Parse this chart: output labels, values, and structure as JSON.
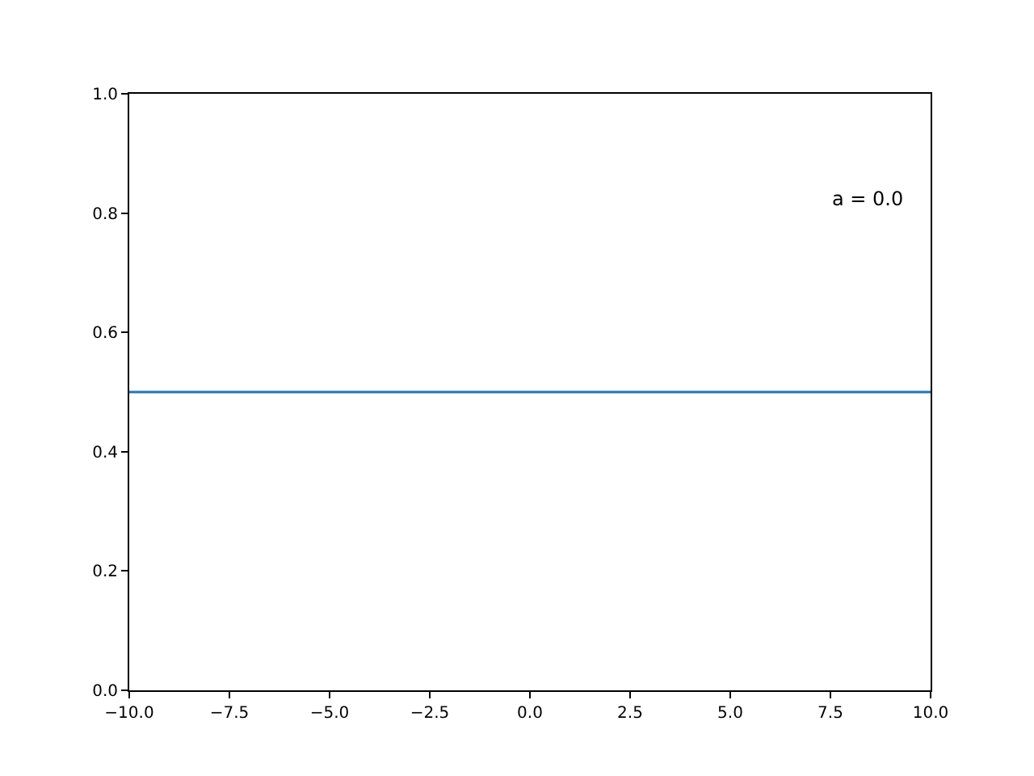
{
  "chart_data": {
    "type": "line",
    "x": [
      -10,
      10
    ],
    "series": [
      {
        "color": "#1f77b4",
        "values": [
          0.5,
          0.5
        ]
      }
    ],
    "annotations": [
      "a = 0.0"
    ],
    "xlim": [
      -10,
      10
    ],
    "xticks": [
      {
        "value": -10,
        "label": "−10.0"
      },
      {
        "value": -7.5,
        "label": "−7.5"
      },
      {
        "value": -5,
        "label": "−5.0"
      },
      {
        "value": -2.5,
        "label": "−2.5"
      },
      {
        "value": 0,
        "label": "0.0"
      },
      {
        "value": 2.5,
        "label": "2.5"
      },
      {
        "value": 5,
        "label": "5.0"
      },
      {
        "value": 7.5,
        "label": "7.5"
      },
      {
        "value": 10,
        "label": "10.0"
      }
    ],
    "ylim": [
      0,
      1
    ],
    "yticks": [
      {
        "value": 0,
        "label": "0.0"
      },
      {
        "value": 0.2,
        "label": "0.2"
      },
      {
        "value": 0.4,
        "label": "0.4"
      },
      {
        "value": 0.6,
        "label": "0.6"
      },
      {
        "value": 0.8,
        "label": "0.8"
      },
      {
        "value": 1,
        "label": "1.0"
      }
    ],
    "grid": false,
    "marker": "none",
    "line_style": "solid"
  }
}
